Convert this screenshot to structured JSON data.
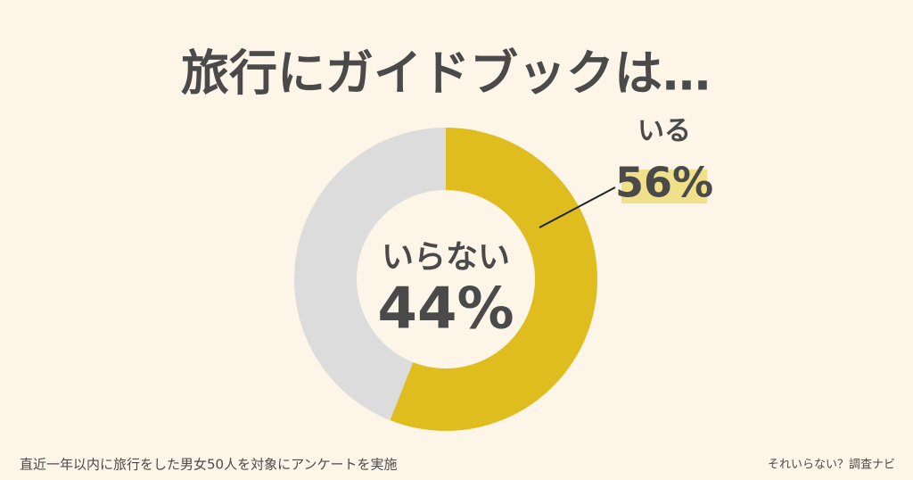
{
  "chart_data": {
    "type": "pie",
    "donut": true,
    "title": "旅行にガイドブックは…",
    "categories": [
      "いる",
      "いらない"
    ],
    "values": [
      56,
      44
    ],
    "value_labels": [
      "56%",
      "44%"
    ],
    "colors": [
      "#dfbd1f",
      "#dcdcdc"
    ],
    "note": "直近一年以内に旅行をした男女50人を対象にアンケートを実施",
    "source": "それいらない？調査ナビ"
  }
}
